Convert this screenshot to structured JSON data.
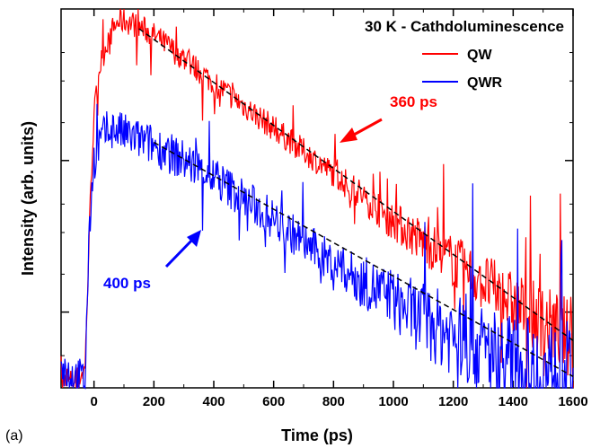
{
  "panel_label": "(a)",
  "chart_data": {
    "type": "line",
    "title": "30 K - Cathdoluminescence",
    "xlabel": "Time (ps)",
    "ylabel": "Intensity (arb. units)",
    "xlim": [
      -110,
      1600
    ],
    "ylim": [
      0,
      1
    ],
    "y_scale": "log",
    "y_ticks_labeled": false,
    "x_ticks": [
      0,
      200,
      400,
      600,
      800,
      1000,
      1200,
      1400,
      1600
    ],
    "grid": false,
    "legend_position": "top-right",
    "colors": {
      "QW": "#ff0000",
      "QWR": "#0000ff",
      "fit": "#000000"
    },
    "series": [
      {
        "name": "QW",
        "x": [
          -110,
          -60,
          -30,
          -20,
          -10,
          0,
          20,
          50,
          80,
          100,
          150,
          200,
          300,
          400,
          500,
          600,
          700,
          800,
          900,
          1000,
          1100,
          1200,
          1300,
          1400,
          1500,
          1560,
          1600
        ],
        "values": [
          0.01,
          0.02,
          0.05,
          0.3,
          0.55,
          0.72,
          0.85,
          0.93,
          0.965,
          0.97,
          0.955,
          0.93,
          0.87,
          0.805,
          0.745,
          0.685,
          0.625,
          0.565,
          0.505,
          0.44,
          0.385,
          0.335,
          0.28,
          0.22,
          0.175,
          0.15,
          0.12
        ],
        "noise": 0.035
      },
      {
        "name": "QWR",
        "x": [
          -110,
          -60,
          -30,
          -20,
          -10,
          0,
          20,
          50,
          80,
          100,
          150,
          200,
          300,
          400,
          500,
          600,
          700,
          800,
          900,
          1000,
          1100,
          1200,
          1300,
          1400,
          1500,
          1560,
          1600
        ],
        "values": [
          0.05,
          0.03,
          0.02,
          0.3,
          0.5,
          0.6,
          0.65,
          0.685,
          0.68,
          0.67,
          0.655,
          0.64,
          0.6,
          0.555,
          0.5,
          0.445,
          0.385,
          0.33,
          0.28,
          0.23,
          0.18,
          0.14,
          0.1,
          0.06,
          0.03,
          0.02,
          0.01
        ],
        "noise": 0.055
      }
    ],
    "fits": [
      {
        "series": "QW",
        "tau_label": "360 ps",
        "x": [
          150,
          1600
        ],
        "values": [
          0.948,
          0.125
        ]
      },
      {
        "series": "QWR",
        "tau_label": "400 ps",
        "x": [
          200,
          1600
        ],
        "values": [
          0.648,
          0.03
        ]
      }
    ],
    "annotations": [
      {
        "text": "360 ps",
        "color": "#ff0000",
        "target_series": "QW"
      },
      {
        "text": "400 ps",
        "color": "#0000ff",
        "target_series": "QWR"
      }
    ]
  }
}
